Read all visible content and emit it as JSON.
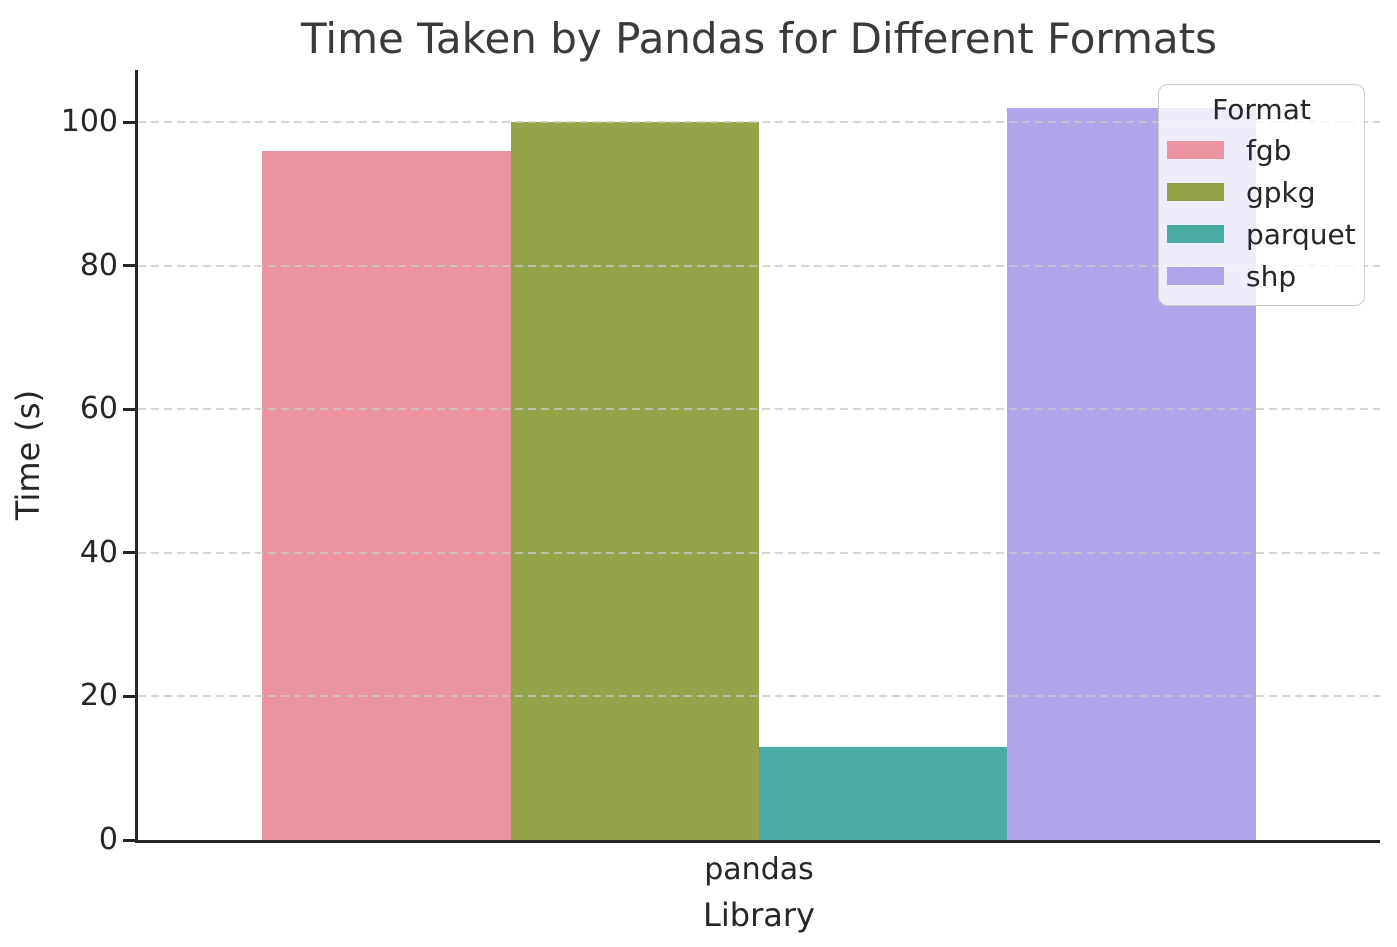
{
  "chart_data": {
    "type": "bar",
    "title": "Time Taken by Pandas for Different Formats",
    "xlabel": "Library",
    "ylabel": "Time (s)",
    "categories": [
      "pandas"
    ],
    "series": [
      {
        "name": "fgb",
        "values": [
          96
        ],
        "color": "#ec93a1"
      },
      {
        "name": "gpkg",
        "values": [
          100
        ],
        "color": "#97a348"
      },
      {
        "name": "parquet",
        "values": [
          13
        ],
        "color": "#4aaba4"
      },
      {
        "name": "shp",
        "values": [
          102
        ],
        "color": "#b2a4e8"
      }
    ],
    "legend_title": "Format",
    "legend_position": "upper right",
    "ylim": [
      0,
      107.3
    ],
    "yticks": [
      0,
      20,
      40,
      60,
      80,
      100
    ],
    "grid": "horizontal dashed",
    "group_width_fraction": 0.8,
    "spine_color": "#262626",
    "grid_color": "#c9c9c9",
    "title_color": "#3a3a3a"
  }
}
